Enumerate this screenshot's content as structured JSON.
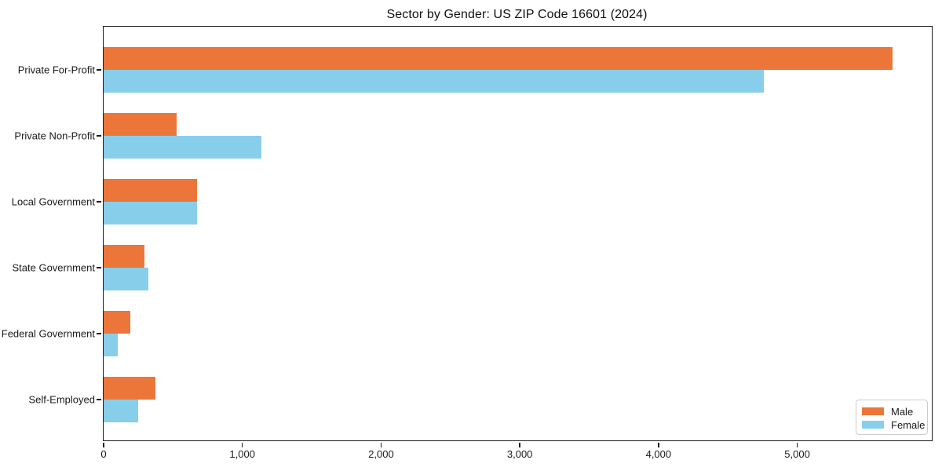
{
  "title": "Sector by Gender: US ZIP Code 16601 (2024)",
  "chart_data": {
    "type": "bar",
    "orientation": "horizontal",
    "title": "Sector by Gender: US ZIP Code 16601 (2024)",
    "categories": [
      "Private For-Profit",
      "Private Non-Profit",
      "Local Government",
      "State Government",
      "Federal Government",
      "Self-Employed"
    ],
    "series": [
      {
        "name": "Male",
        "color": "#EC7639",
        "values": [
          5685,
          525,
          675,
          295,
          190,
          375
        ]
      },
      {
        "name": "Female",
        "color": "#87CEEB",
        "values": [
          4760,
          1135,
          675,
          320,
          100,
          250
        ]
      }
    ],
    "xlabel": "",
    "ylabel": "",
    "xlim": [
      0,
      5970
    ],
    "xticks": [
      0,
      1000,
      2000,
      3000,
      4000,
      5000
    ],
    "xtick_labels": [
      "0",
      "1,000",
      "2,000",
      "3,000",
      "4,000",
      "5,000"
    ],
    "grid": false,
    "legend_position": "lower right"
  }
}
